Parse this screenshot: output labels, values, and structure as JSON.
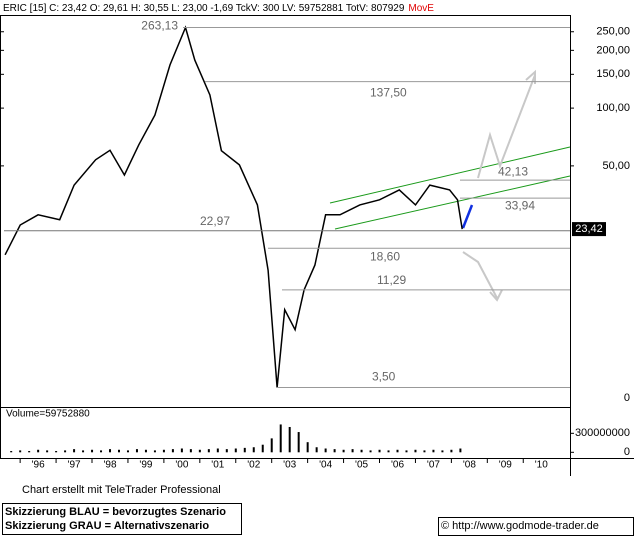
{
  "chart_data": [
    {
      "type": "line",
      "title": "ERIC [15] C: 23,42 O: 29,61 H: 30,55 L: 23,00 -1,69 TckV: 300 LV: 59752881 TotV: 807929",
      "title_flag": "MovE",
      "log_y": true,
      "xlim": [
        1995.05,
        2010.8
      ],
      "xticks": [
        {
          "value": 1996,
          "label": "'96"
        },
        {
          "value": 1997,
          "label": "'97"
        },
        {
          "value": 1998,
          "label": "'98"
        },
        {
          "value": 1999,
          "label": "'99"
        },
        {
          "value": 2000,
          "label": "'00"
        },
        {
          "value": 2001,
          "label": "'01"
        },
        {
          "value": 2002,
          "label": "'02"
        },
        {
          "value": 2003,
          "label": "'03"
        },
        {
          "value": 2004,
          "label": "'04"
        },
        {
          "value": 2005,
          "label": "'05"
        },
        {
          "value": 2006,
          "label": "'06"
        },
        {
          "value": 2007,
          "label": "'07"
        },
        {
          "value": 2008,
          "label": "'08"
        },
        {
          "value": 2009,
          "label": "'09"
        },
        {
          "value": 2010,
          "label": "'10"
        }
      ],
      "ylim": [
        2.77,
        302
      ],
      "yticks": [
        {
          "value": 250,
          "label": "250,00"
        },
        {
          "value": 200,
          "label": "200,00"
        },
        {
          "value": 150,
          "label": "150,00"
        },
        {
          "value": 100,
          "label": "100,00"
        },
        {
          "value": 50,
          "label": "50,00"
        }
      ],
      "y_floor_label": "0",
      "x": [
        1995.08,
        1995.5,
        1996.0,
        1996.6,
        1997.0,
        1997.6,
        1998.0,
        1998.4,
        1998.8,
        1999.25,
        1999.67,
        2000.1,
        2000.36,
        2000.78,
        2001.1,
        2001.6,
        2002.1,
        2002.4,
        2002.65,
        2002.86,
        2003.15,
        2003.4,
        2003.7,
        2004.0,
        2004.4,
        2004.95,
        2005.5,
        2006.05,
        2006.5,
        2006.9,
        2007.45,
        2007.67,
        2007.8
      ],
      "series": [
        {
          "name": "ERIC",
          "color": "#000000",
          "values": [
            17.2,
            24.6,
            27.8,
            26.2,
            39.7,
            53.8,
            60.3,
            44.8,
            64.4,
            92,
            168,
            263.13,
            178,
            117,
            60,
            50.6,
            31.3,
            14.3,
            3.5,
            8.9,
            7.0,
            11.3,
            15.2,
            27.8,
            27.8,
            31.3,
            33.3,
            37.5,
            31.3,
            39.7,
            37.5,
            33.3,
            23.42
          ]
        }
      ],
      "levels": {
        "values": [
          263.13,
          137.5,
          42.13,
          33.94,
          22.97,
          18.6,
          11.29,
          3.5
        ],
        "value_labels": [
          "263,13",
          "137,50",
          "42,13",
          "33,94",
          "22,97",
          "18,60",
          "11,29",
          "3,50"
        ]
      },
      "last": {
        "value": 23.42,
        "label": "23,42"
      }
    },
    {
      "type": "bar",
      "title": "Volume=59752880",
      "color": "#000000",
      "ylim": [
        -90000000,
        700000000
      ],
      "yticks": [
        300000000,
        0
      ],
      "x": [
        1995.25,
        1995.5,
        1995.75,
        1996,
        1996.25,
        1996.5,
        1996.75,
        1997,
        1997.25,
        1997.5,
        1997.75,
        1998,
        1998.25,
        1998.5,
        1998.75,
        1999,
        1999.25,
        1999.5,
        1999.75,
        2000,
        2000.25,
        2000.5,
        2000.75,
        2001,
        2001.25,
        2001.5,
        2001.75,
        2002,
        2002.25,
        2002.5,
        2002.75,
        2003,
        2003.25,
        2003.5,
        2003.75,
        2004,
        2004.25,
        2004.5,
        2004.75,
        2005,
        2005.25,
        2005.5,
        2005.75,
        2006,
        2006.25,
        2006.5,
        2006.75,
        2007,
        2007.25,
        2007.5,
        2007.75
      ],
      "values": [
        20000000,
        30000000,
        20000000,
        40000000,
        30000000,
        20000000,
        30000000,
        50000000,
        30000000,
        40000000,
        30000000,
        50000000,
        40000000,
        30000000,
        50000000,
        40000000,
        30000000,
        40000000,
        50000000,
        60000000,
        50000000,
        40000000,
        50000000,
        60000000,
        50000000,
        60000000,
        70000000,
        80000000,
        120000000,
        220000000,
        440000000,
        400000000,
        320000000,
        160000000,
        80000000,
        60000000,
        50000000,
        40000000,
        50000000,
        40000000,
        30000000,
        40000000,
        30000000,
        40000000,
        30000000,
        40000000,
        30000000,
        40000000,
        30000000,
        40000000,
        59752880
      ]
    }
  ],
  "notes": {
    "credit": "Chart erstellt mit TeleTrader Professional",
    "legend_blue": "Skizzierung BLAU = bevorzugtes Szenario",
    "legend_grey": "Skizzierung GRAU = Alternativszenario",
    "source": "© http://www.godmode-trader.de"
  }
}
